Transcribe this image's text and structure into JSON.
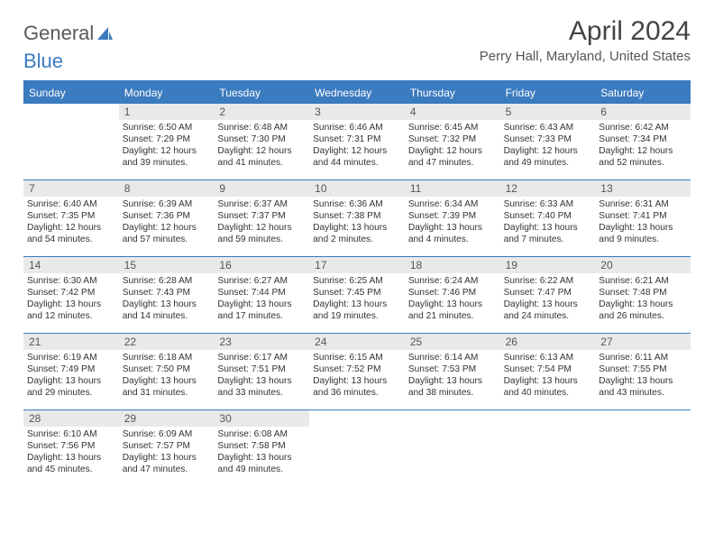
{
  "brand": {
    "part1": "General",
    "part2": "Blue"
  },
  "title": "April 2024",
  "location": "Perry Hall, Maryland, United States",
  "colors": {
    "accent": "#3b7bbf",
    "daynum_bg": "#e9e9e9",
    "text": "#333333",
    "header_text": "#ffffff",
    "background": "#ffffff"
  },
  "day_names": [
    "Sunday",
    "Monday",
    "Tuesday",
    "Wednesday",
    "Thursday",
    "Friday",
    "Saturday"
  ],
  "weeks": [
    [
      {
        "empty": true
      },
      {
        "n": "1",
        "sr": "Sunrise: 6:50 AM",
        "ss": "Sunset: 7:29 PM",
        "d1": "Daylight: 12 hours",
        "d2": "and 39 minutes."
      },
      {
        "n": "2",
        "sr": "Sunrise: 6:48 AM",
        "ss": "Sunset: 7:30 PM",
        "d1": "Daylight: 12 hours",
        "d2": "and 41 minutes."
      },
      {
        "n": "3",
        "sr": "Sunrise: 6:46 AM",
        "ss": "Sunset: 7:31 PM",
        "d1": "Daylight: 12 hours",
        "d2": "and 44 minutes."
      },
      {
        "n": "4",
        "sr": "Sunrise: 6:45 AM",
        "ss": "Sunset: 7:32 PM",
        "d1": "Daylight: 12 hours",
        "d2": "and 47 minutes."
      },
      {
        "n": "5",
        "sr": "Sunrise: 6:43 AM",
        "ss": "Sunset: 7:33 PM",
        "d1": "Daylight: 12 hours",
        "d2": "and 49 minutes."
      },
      {
        "n": "6",
        "sr": "Sunrise: 6:42 AM",
        "ss": "Sunset: 7:34 PM",
        "d1": "Daylight: 12 hours",
        "d2": "and 52 minutes."
      }
    ],
    [
      {
        "n": "7",
        "sr": "Sunrise: 6:40 AM",
        "ss": "Sunset: 7:35 PM",
        "d1": "Daylight: 12 hours",
        "d2": "and 54 minutes."
      },
      {
        "n": "8",
        "sr": "Sunrise: 6:39 AM",
        "ss": "Sunset: 7:36 PM",
        "d1": "Daylight: 12 hours",
        "d2": "and 57 minutes."
      },
      {
        "n": "9",
        "sr": "Sunrise: 6:37 AM",
        "ss": "Sunset: 7:37 PM",
        "d1": "Daylight: 12 hours",
        "d2": "and 59 minutes."
      },
      {
        "n": "10",
        "sr": "Sunrise: 6:36 AM",
        "ss": "Sunset: 7:38 PM",
        "d1": "Daylight: 13 hours",
        "d2": "and 2 minutes."
      },
      {
        "n": "11",
        "sr": "Sunrise: 6:34 AM",
        "ss": "Sunset: 7:39 PM",
        "d1": "Daylight: 13 hours",
        "d2": "and 4 minutes."
      },
      {
        "n": "12",
        "sr": "Sunrise: 6:33 AM",
        "ss": "Sunset: 7:40 PM",
        "d1": "Daylight: 13 hours",
        "d2": "and 7 minutes."
      },
      {
        "n": "13",
        "sr": "Sunrise: 6:31 AM",
        "ss": "Sunset: 7:41 PM",
        "d1": "Daylight: 13 hours",
        "d2": "and 9 minutes."
      }
    ],
    [
      {
        "n": "14",
        "sr": "Sunrise: 6:30 AM",
        "ss": "Sunset: 7:42 PM",
        "d1": "Daylight: 13 hours",
        "d2": "and 12 minutes."
      },
      {
        "n": "15",
        "sr": "Sunrise: 6:28 AM",
        "ss": "Sunset: 7:43 PM",
        "d1": "Daylight: 13 hours",
        "d2": "and 14 minutes."
      },
      {
        "n": "16",
        "sr": "Sunrise: 6:27 AM",
        "ss": "Sunset: 7:44 PM",
        "d1": "Daylight: 13 hours",
        "d2": "and 17 minutes."
      },
      {
        "n": "17",
        "sr": "Sunrise: 6:25 AM",
        "ss": "Sunset: 7:45 PM",
        "d1": "Daylight: 13 hours",
        "d2": "and 19 minutes."
      },
      {
        "n": "18",
        "sr": "Sunrise: 6:24 AM",
        "ss": "Sunset: 7:46 PM",
        "d1": "Daylight: 13 hours",
        "d2": "and 21 minutes."
      },
      {
        "n": "19",
        "sr": "Sunrise: 6:22 AM",
        "ss": "Sunset: 7:47 PM",
        "d1": "Daylight: 13 hours",
        "d2": "and 24 minutes."
      },
      {
        "n": "20",
        "sr": "Sunrise: 6:21 AM",
        "ss": "Sunset: 7:48 PM",
        "d1": "Daylight: 13 hours",
        "d2": "and 26 minutes."
      }
    ],
    [
      {
        "n": "21",
        "sr": "Sunrise: 6:19 AM",
        "ss": "Sunset: 7:49 PM",
        "d1": "Daylight: 13 hours",
        "d2": "and 29 minutes."
      },
      {
        "n": "22",
        "sr": "Sunrise: 6:18 AM",
        "ss": "Sunset: 7:50 PM",
        "d1": "Daylight: 13 hours",
        "d2": "and 31 minutes."
      },
      {
        "n": "23",
        "sr": "Sunrise: 6:17 AM",
        "ss": "Sunset: 7:51 PM",
        "d1": "Daylight: 13 hours",
        "d2": "and 33 minutes."
      },
      {
        "n": "24",
        "sr": "Sunrise: 6:15 AM",
        "ss": "Sunset: 7:52 PM",
        "d1": "Daylight: 13 hours",
        "d2": "and 36 minutes."
      },
      {
        "n": "25",
        "sr": "Sunrise: 6:14 AM",
        "ss": "Sunset: 7:53 PM",
        "d1": "Daylight: 13 hours",
        "d2": "and 38 minutes."
      },
      {
        "n": "26",
        "sr": "Sunrise: 6:13 AM",
        "ss": "Sunset: 7:54 PM",
        "d1": "Daylight: 13 hours",
        "d2": "and 40 minutes."
      },
      {
        "n": "27",
        "sr": "Sunrise: 6:11 AM",
        "ss": "Sunset: 7:55 PM",
        "d1": "Daylight: 13 hours",
        "d2": "and 43 minutes."
      }
    ],
    [
      {
        "n": "28",
        "sr": "Sunrise: 6:10 AM",
        "ss": "Sunset: 7:56 PM",
        "d1": "Daylight: 13 hours",
        "d2": "and 45 minutes."
      },
      {
        "n": "29",
        "sr": "Sunrise: 6:09 AM",
        "ss": "Sunset: 7:57 PM",
        "d1": "Daylight: 13 hours",
        "d2": "and 47 minutes."
      },
      {
        "n": "30",
        "sr": "Sunrise: 6:08 AM",
        "ss": "Sunset: 7:58 PM",
        "d1": "Daylight: 13 hours",
        "d2": "and 49 minutes."
      },
      {
        "empty": true
      },
      {
        "empty": true
      },
      {
        "empty": true
      },
      {
        "empty": true
      }
    ]
  ]
}
